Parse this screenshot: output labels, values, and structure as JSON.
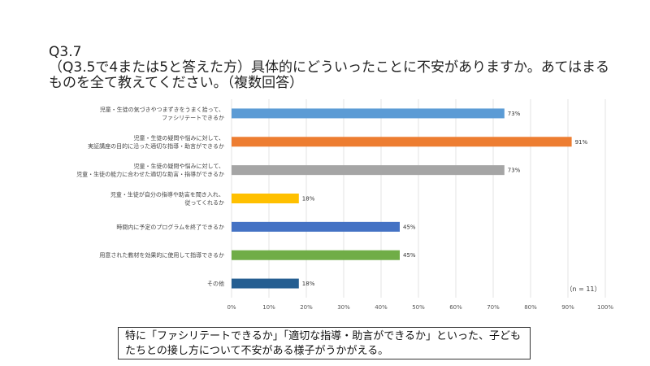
{
  "title_lines": [
    "Q3.7",
    "（Q3.5で4または5と答えた方）具体的にどういったことに不安がありますか。あてはまるものを全て教えてください。（複数回答）"
  ],
  "sample_note": "（n = 11）",
  "summary_text": "特に「ファシリテートできるか」「適切な指導・助言ができるか」といった、子どもたちとの接し方について不安がある様子がうかがえる。",
  "chart_data": {
    "type": "bar",
    "orientation": "horizontal",
    "categories": [
      [
        "児童・生徒の気づきやつまずきをうまく拾って、",
        "ファシリテートできるか"
      ],
      [
        "児童・生徒の疑問や悩みに対して、",
        "実証講座の目的に沿った適切な指導・助言ができるか"
      ],
      [
        "児童・生徒の疑問や悩みに対して、",
        "児童・生徒の能力に合わせた適切な助言・指導ができるか"
      ],
      [
        "児童・生徒が自分の指導や助言を聞き入れ、",
        "従ってくれるか"
      ],
      [
        "時間内に予定のプログラムを終了できるか"
      ],
      [
        "用意された教材を効果的に使用して指導できるか"
      ],
      [
        "その他"
      ]
    ],
    "values": [
      73,
      91,
      73,
      18,
      45,
      45,
      18
    ],
    "value_labels": [
      "73%",
      "91%",
      "73%",
      "18%",
      "45%",
      "45%",
      "18%"
    ],
    "colors": [
      "#5b9bd5",
      "#ed7d31",
      "#a5a5a5",
      "#ffc000",
      "#4472c4",
      "#70ad47",
      "#255e91"
    ],
    "xlim": [
      0,
      100
    ],
    "xticks": [
      0,
      10,
      20,
      30,
      40,
      50,
      60,
      70,
      80,
      90,
      100
    ],
    "xtick_labels": [
      "0%",
      "10%",
      "20%",
      "30%",
      "40%",
      "50%",
      "60%",
      "70%",
      "80%",
      "90%",
      "100%"
    ],
    "grid": true
  }
}
